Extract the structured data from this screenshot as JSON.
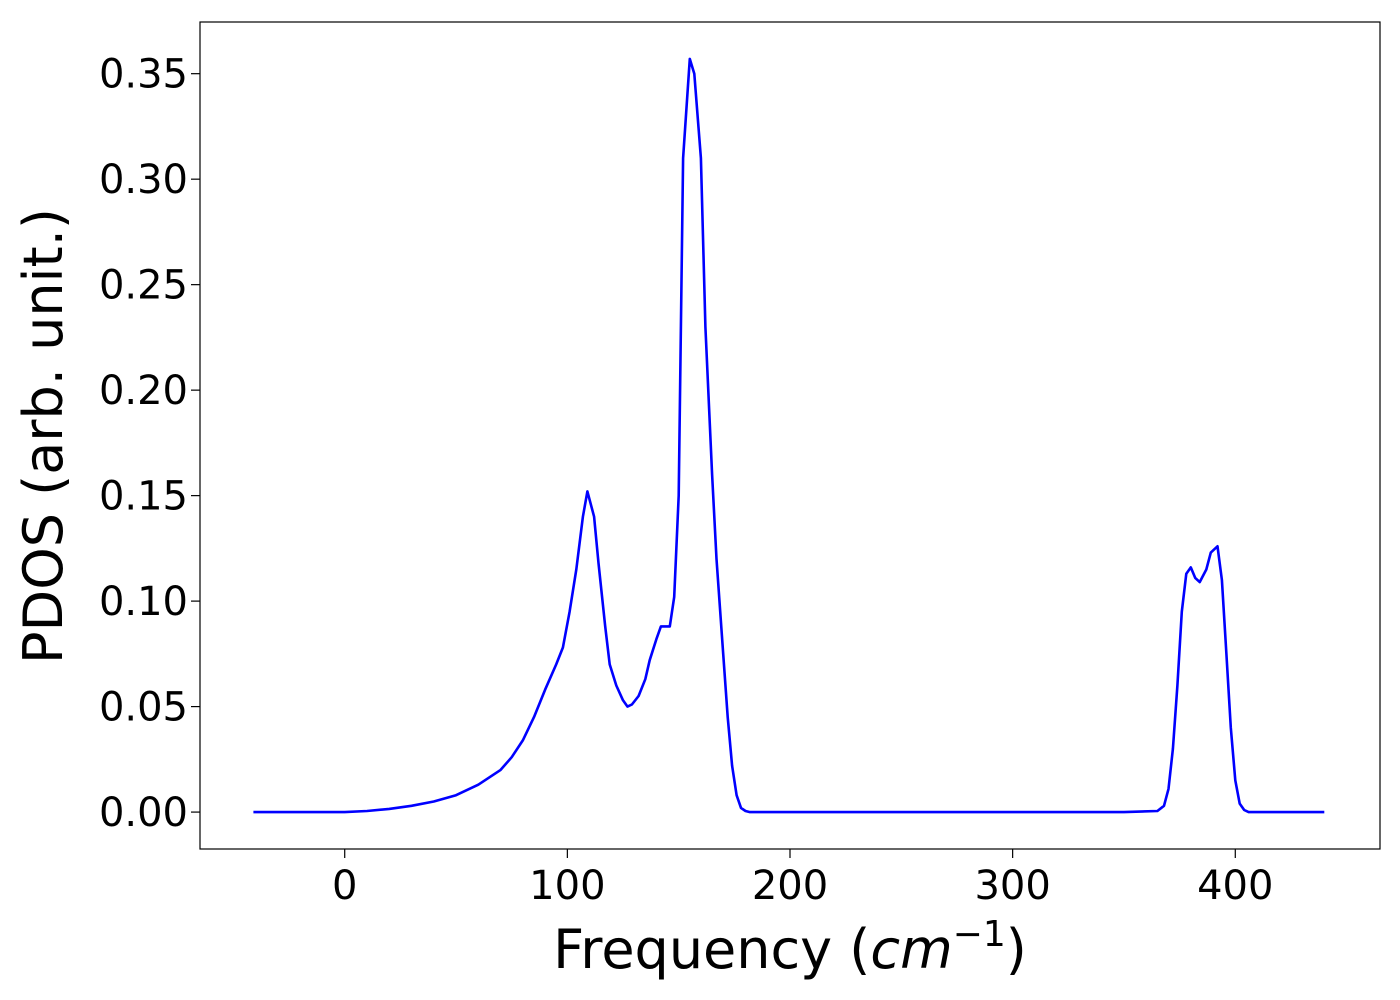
{
  "chart_data": {
    "type": "line",
    "xlabel": "Frequency (",
    "xlabel_unit_base": "cm",
    "xlabel_unit_exp": "−1",
    "xlabel_close": ")",
    "ylabel": "PDOS (arb. unit.)",
    "xlim": [
      -65,
      465
    ],
    "ylim": [
      -0.0175,
      0.3745
    ],
    "xticks": [
      0,
      100,
      200,
      300,
      400
    ],
    "xtick_labels": [
      "0",
      "100",
      "200",
      "300",
      "400"
    ],
    "yticks": [
      0.0,
      0.05,
      0.1,
      0.15,
      0.2,
      0.25,
      0.3,
      0.35
    ],
    "ytick_labels": [
      "0.00",
      "0.05",
      "0.10",
      "0.15",
      "0.20",
      "0.25",
      "0.30",
      "0.35"
    ],
    "grid": false,
    "series": [
      {
        "color": "#0000ff",
        "x": [
          -41,
          0,
          10,
          20,
          30,
          40,
          50,
          60,
          70,
          75,
          80,
          85,
          90,
          95,
          98,
          101,
          104,
          107,
          109,
          112,
          114,
          117,
          119,
          122,
          125,
          127,
          129,
          132,
          135,
          137,
          140,
          142,
          144,
          146,
          148,
          150,
          152,
          155,
          157,
          160,
          162,
          165,
          167,
          170,
          172,
          174,
          176,
          178,
          180,
          182,
          185,
          190,
          200,
          250,
          300,
          350,
          365,
          368,
          370,
          372,
          374,
          376,
          378,
          380,
          382,
          384,
          387,
          389,
          392,
          394,
          396,
          398,
          400,
          402,
          404,
          406,
          408,
          410,
          415,
          440
        ],
        "y": [
          0.0,
          0.0,
          0.0005,
          0.0015,
          0.003,
          0.005,
          0.008,
          0.013,
          0.02,
          0.026,
          0.034,
          0.045,
          0.058,
          0.07,
          0.078,
          0.095,
          0.115,
          0.14,
          0.152,
          0.14,
          0.118,
          0.088,
          0.07,
          0.06,
          0.053,
          0.05,
          0.051,
          0.055,
          0.063,
          0.072,
          0.082,
          0.088,
          0.088,
          0.088,
          0.102,
          0.15,
          0.31,
          0.357,
          0.35,
          0.31,
          0.23,
          0.16,
          0.12,
          0.075,
          0.045,
          0.022,
          0.008,
          0.002,
          0.0005,
          0.0,
          0.0,
          0.0,
          0.0,
          0.0,
          0.0,
          0.0,
          0.0005,
          0.003,
          0.011,
          0.03,
          0.06,
          0.095,
          0.113,
          0.116,
          0.111,
          0.109,
          0.115,
          0.123,
          0.126,
          0.11,
          0.075,
          0.04,
          0.015,
          0.004,
          0.001,
          0.0,
          0.0,
          0.0,
          0.0,
          0.0
        ]
      }
    ]
  }
}
